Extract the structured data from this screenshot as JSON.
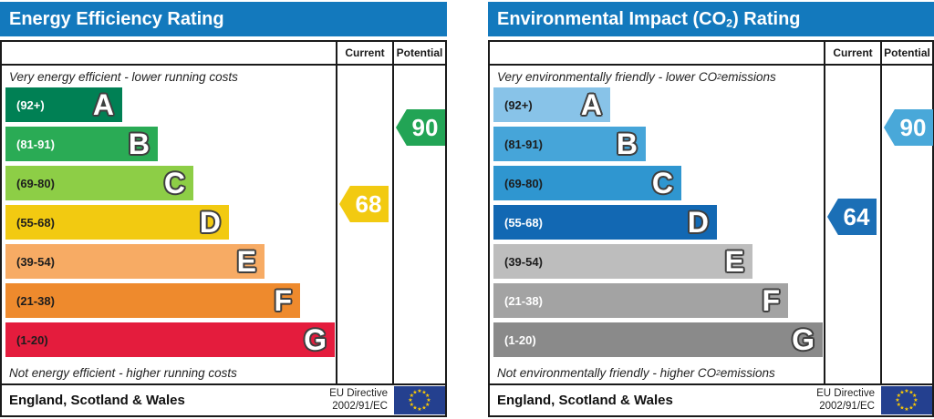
{
  "colors": {
    "header_bar": "#1379bd",
    "frame_border": "#1a1a1a",
    "eu_flag_background": "#24408f",
    "eu_flag_stars": "#ffcc00"
  },
  "panels": [
    {
      "title": {
        "prefix": "Energy Efficiency Rating",
        "sub": "",
        "suffix": ""
      },
      "columns": {
        "current": "Current",
        "potential": "Potential"
      },
      "top_note": {
        "prefix": "Very energy efficient - lower running costs",
        "sub": "",
        "suffix": ""
      },
      "bottom_note": {
        "prefix": "Not energy efficient - higher running costs",
        "sub": "",
        "suffix": ""
      },
      "bands": [
        {
          "letter": "A",
          "range": "(92+)",
          "color": "#008054",
          "label_color": "#ffffff"
        },
        {
          "letter": "B",
          "range": "(81-91)",
          "color": "#2aab55",
          "label_color": "#ffffff"
        },
        {
          "letter": "C",
          "range": "(69-80)",
          "color": "#8dce46",
          "label_color": "#1d1d1d"
        },
        {
          "letter": "D",
          "range": "(55-68)",
          "color": "#f2ca11",
          "label_color": "#1d1d1d"
        },
        {
          "letter": "E",
          "range": "(39-54)",
          "color": "#f7ab64",
          "label_color": "#1d1d1d"
        },
        {
          "letter": "F",
          "range": "(21-38)",
          "color": "#ee8a2d",
          "label_color": "#1d1d1d"
        },
        {
          "letter": "G",
          "range": "(1-20)",
          "color": "#e41c3d",
          "label_color": "#1d1d1d"
        }
      ],
      "current": {
        "value": "68",
        "color": "#f2ca11"
      },
      "potential": {
        "value": "90",
        "color": "#22a455"
      },
      "footer": {
        "region": "England, Scotland & Wales",
        "directive_line1": "EU Directive",
        "directive_line2": "2002/91/EC"
      }
    },
    {
      "title": {
        "prefix": "Environmental Impact (CO",
        "sub": "2",
        "suffix": ") Rating"
      },
      "columns": {
        "current": "Current",
        "potential": "Potential"
      },
      "top_note": {
        "prefix": "Very environmentally friendly - lower CO",
        "sub": "2",
        "suffix": " emissions"
      },
      "bottom_note": {
        "prefix": "Not environmentally friendly - higher CO",
        "sub": "2",
        "suffix": " emissions"
      },
      "bands": [
        {
          "letter": "A",
          "range": "(92+)",
          "color": "#88c3e8",
          "label_color": "#1d1d1d"
        },
        {
          "letter": "B",
          "range": "(81-91)",
          "color": "#46a5d9",
          "label_color": "#1d1d1d"
        },
        {
          "letter": "C",
          "range": "(69-80)",
          "color": "#2f96d0",
          "label_color": "#1d1d1d"
        },
        {
          "letter": "D",
          "range": "(55-68)",
          "color": "#1268b3",
          "label_color": "#ffffff"
        },
        {
          "letter": "E",
          "range": "(39-54)",
          "color": "#bdbdbd",
          "label_color": "#1d1d1d"
        },
        {
          "letter": "F",
          "range": "(21-38)",
          "color": "#a3a3a3",
          "label_color": "#ffffff"
        },
        {
          "letter": "G",
          "range": "(1-20)",
          "color": "#8a8a8a",
          "label_color": "#ffffff"
        }
      ],
      "current": {
        "value": "64",
        "color": "#1b6fb6"
      },
      "potential": {
        "value": "90",
        "color": "#49a8d9"
      },
      "footer": {
        "region": "England, Scotland & Wales",
        "directive_line1": "EU Directive",
        "directive_line2": "2002/91/EC"
      }
    }
  ],
  "chart_data": [
    {
      "type": "bar",
      "title": "Energy Efficiency Rating",
      "subtitle_top": "Very energy efficient - lower running costs",
      "subtitle_bottom": "Not energy efficient - higher running costs",
      "categories": [
        "A",
        "B",
        "C",
        "D",
        "E",
        "F",
        "G"
      ],
      "score_ranges": [
        "92+",
        "81-91",
        "69-80",
        "55-68",
        "39-54",
        "21-38",
        "1-20"
      ],
      "band_colors": [
        "#008054",
        "#2aab55",
        "#8dce46",
        "#f2ca11",
        "#f7ab64",
        "#ee8a2d",
        "#e41c3d"
      ],
      "current": 68,
      "current_band": "D",
      "potential": 90,
      "potential_band": "B",
      "legend": [
        "Current",
        "Potential"
      ],
      "region": "England, Scotland & Wales",
      "directive": "EU Directive 2002/91/EC"
    },
    {
      "type": "bar",
      "title": "Environmental Impact (CO2) Rating",
      "subtitle_top": "Very environmentally friendly - lower CO2 emissions",
      "subtitle_bottom": "Not environmentally friendly - higher CO2 emissions",
      "categories": [
        "A",
        "B",
        "C",
        "D",
        "E",
        "F",
        "G"
      ],
      "score_ranges": [
        "92+",
        "81-91",
        "69-80",
        "55-68",
        "39-54",
        "21-38",
        "1-20"
      ],
      "band_colors": [
        "#88c3e8",
        "#46a5d9",
        "#2f96d0",
        "#1268b3",
        "#bdbdbd",
        "#a3a3a3",
        "#8a8a8a"
      ],
      "current": 64,
      "current_band": "D",
      "potential": 90,
      "potential_band": "B",
      "legend": [
        "Current",
        "Potential"
      ],
      "region": "England, Scotland & Wales",
      "directive": "EU Directive 2002/91/EC"
    }
  ]
}
